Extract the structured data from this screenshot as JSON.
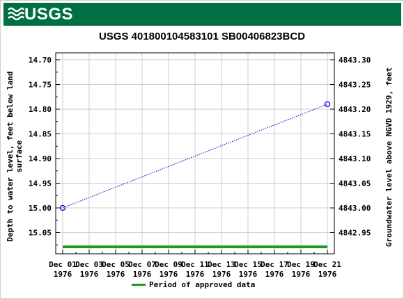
{
  "header": {
    "logo_text": "USGS",
    "logo_icon": "usgs-wave-icon"
  },
  "chart_data": {
    "type": "line",
    "title": "USGS 401800104583101 SB00406823BCD",
    "ylabel_left": "Depth to water level, feet below land surface",
    "ylabel_left_lines": [
      "Depth to water level, feet below land",
      "surface"
    ],
    "ylabel_right": "Groundwater level above NGVD 1929, feet",
    "x_tick_labels": [
      {
        "line1": "Dec 01",
        "line2": "1976"
      },
      {
        "line1": "Dec 03",
        "line2": "1976"
      },
      {
        "line1": "Dec 05",
        "line2": "1976"
      },
      {
        "line1": "Dec 07",
        "line2": "1976"
      },
      {
        "line1": "Dec 09",
        "line2": "1976"
      },
      {
        "line1": "Dec 11",
        "line2": "1976"
      },
      {
        "line1": "Dec 13",
        "line2": "1976"
      },
      {
        "line1": "Dec 15",
        "line2": "1976"
      },
      {
        "line1": "Dec 17",
        "line2": "1976"
      },
      {
        "line1": "Dec 19",
        "line2": "1976"
      },
      {
        "line1": "Dec 21",
        "line2": "1976"
      }
    ],
    "xlim": [
      "1976-12-01",
      "1976-12-21"
    ],
    "y_left_ticks": [
      "14.70",
      "14.75",
      "14.80",
      "14.85",
      "14.90",
      "14.95",
      "15.00",
      "15.05"
    ],
    "y_left_values": [
      14.7,
      14.75,
      14.8,
      14.85,
      14.9,
      14.95,
      15.0,
      15.05
    ],
    "ylim_left": [
      14.69,
      15.1
    ],
    "y_left_inverted": true,
    "y_right_ticks": [
      "4843.30",
      "4843.25",
      "4843.20",
      "4843.15",
      "4843.10",
      "4843.05",
      "4843.00",
      "4842.95"
    ],
    "y_right_values": [
      4843.3,
      4843.25,
      4843.2,
      4843.15,
      4843.1,
      4843.05,
      4843.0,
      4842.95
    ],
    "grid": true,
    "series": [
      {
        "points": [
          {
            "x": "1976-12-01",
            "y": 15.0
          },
          {
            "x": "1976-12-21",
            "y": 14.79
          }
        ],
        "color": "#0000cc",
        "marker": "circle",
        "line_style": "dotted"
      }
    ],
    "approved_period": {
      "start": "1976-12-01",
      "end": "1976-12-21",
      "color": "#1a9e1a"
    },
    "legend": {
      "entries": [
        "Period of approved data"
      ],
      "placement": "bottom-center"
    }
  }
}
